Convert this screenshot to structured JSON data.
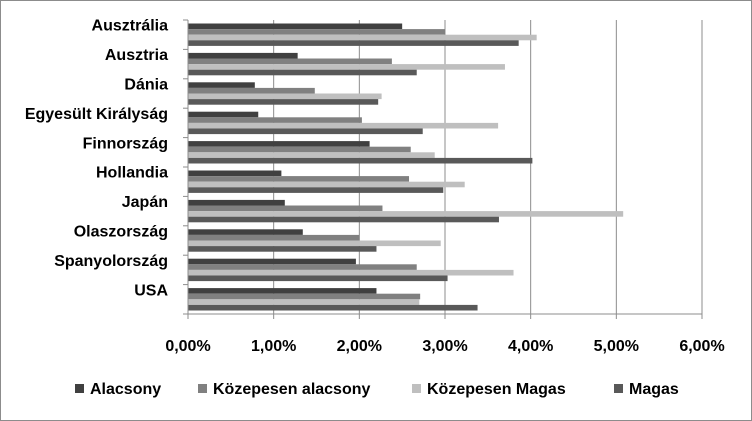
{
  "chart_data": {
    "type": "bar",
    "orientation": "horizontal",
    "categories": [
      "Ausztrália",
      "Ausztria",
      "Dánia",
      "Egyesült Királyság",
      "Finnország",
      "Hollandia",
      "Japán",
      "Olaszország",
      "Spanyolország",
      "USA"
    ],
    "series": [
      {
        "name": "Alacsony",
        "color": "#404040",
        "values": [
          2.5,
          1.28,
          0.78,
          0.82,
          2.12,
          1.09,
          1.13,
          1.34,
          1.96,
          2.2
        ]
      },
      {
        "name": "Közepesen alacsony",
        "color": "#808080",
        "values": [
          3.0,
          2.38,
          1.48,
          2.03,
          2.6,
          2.58,
          2.27,
          2.0,
          2.67,
          2.71
        ]
      },
      {
        "name": "Közepesen Magas",
        "color": "#bfbfbf",
        "values": [
          4.07,
          3.7,
          2.26,
          3.62,
          2.88,
          3.23,
          5.08,
          2.95,
          3.8,
          2.7
        ]
      },
      {
        "name": "Magas",
        "color": "#595959",
        "values": [
          3.86,
          2.67,
          2.22,
          2.74,
          4.02,
          2.98,
          3.63,
          2.2,
          3.03,
          3.38
        ]
      }
    ],
    "xticks": [
      "0,00%",
      "1,00%",
      "2,00%",
      "3,00%",
      "4,00%",
      "5,00%",
      "6,00%"
    ],
    "xlim": [
      0,
      6
    ],
    "grid": true,
    "legend_position": "bottom",
    "title": "",
    "xlabel": "",
    "ylabel": ""
  }
}
